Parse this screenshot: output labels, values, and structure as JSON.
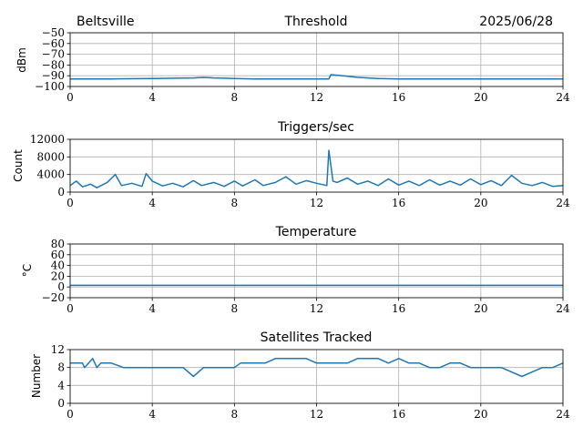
{
  "header": {
    "station": "Beltsville",
    "date": "2025/06/28"
  },
  "colors": {
    "series": "#1f77b4",
    "grid": "#b0b0b0"
  },
  "chart_data": [
    {
      "type": "line",
      "title": "Threshold",
      "ylabel": "dBm",
      "xlim": [
        0,
        24
      ],
      "ylim": [
        -100,
        -50
      ],
      "xticks": [
        "0",
        "4",
        "8",
        "12",
        "16",
        "20",
        "24"
      ],
      "yticks": [
        "−50",
        "−60",
        "−70",
        "−80",
        "−90",
        "−100"
      ],
      "ytick_values": [
        -50,
        -60,
        -70,
        -80,
        -90,
        -100
      ],
      "grid": true,
      "x": [
        0,
        2,
        4,
        6,
        6.5,
        7,
        8,
        9,
        10,
        12,
        12.6,
        12.7,
        13,
        13.5,
        14,
        15,
        16,
        18,
        20,
        22,
        24
      ],
      "y": [
        -93,
        -93,
        -92.5,
        -92,
        -91.5,
        -92,
        -92.5,
        -93,
        -93,
        -93,
        -93,
        -89,
        -89.5,
        -90.5,
        -91.5,
        -92.5,
        -93,
        -93,
        -93,
        -93,
        -93
      ]
    },
    {
      "type": "line",
      "title": "Triggers/sec",
      "ylabel": "Count",
      "xlim": [
        0,
        24
      ],
      "ylim": [
        0,
        12000
      ],
      "xticks": [
        "0",
        "4",
        "8",
        "12",
        "16",
        "20",
        "24"
      ],
      "yticks": [
        "12000",
        "8000",
        "4000",
        "0"
      ],
      "ytick_values": [
        12000,
        8000,
        4000,
        0
      ],
      "grid": true,
      "x": [
        0,
        0.3,
        0.6,
        1,
        1.3,
        1.8,
        2.2,
        2.5,
        3,
        3.5,
        3.7,
        4,
        4.5,
        5,
        5.5,
        6,
        6.4,
        7,
        7.5,
        8,
        8.4,
        9,
        9.4,
        10,
        10.5,
        11,
        11.5,
        12,
        12.5,
        12.6,
        12.8,
        13,
        13.5,
        14,
        14.5,
        15,
        15.5,
        16,
        16.5,
        17,
        17.5,
        18,
        18.5,
        19,
        19.5,
        20,
        20.5,
        21,
        21.5,
        22,
        22.5,
        23,
        23.5,
        24
      ],
      "y": [
        1500,
        2500,
        1200,
        1800,
        1000,
        2200,
        4000,
        1500,
        2000,
        1300,
        4200,
        2500,
        1400,
        2000,
        1200,
        2600,
        1500,
        2200,
        1300,
        2500,
        1400,
        2800,
        1500,
        2200,
        3500,
        1800,
        2600,
        2000,
        1500,
        9500,
        2500,
        2200,
        3200,
        1800,
        2500,
        1500,
        3000,
        1600,
        2500,
        1500,
        2800,
        1600,
        2500,
        1600,
        3000,
        1700,
        2600,
        1500,
        3800,
        2000,
        1500,
        2200,
        1300,
        1500
      ]
    },
    {
      "type": "line",
      "title": "Temperature",
      "ylabel": "°C",
      "xlim": [
        0,
        24
      ],
      "ylim": [
        -20,
        80
      ],
      "xticks": [
        "0",
        "4",
        "8",
        "12",
        "16",
        "20",
        "24"
      ],
      "yticks": [
        "80",
        "60",
        "40",
        "20",
        "0",
        "−20"
      ],
      "ytick_values": [
        80,
        60,
        40,
        20,
        0,
        -20
      ],
      "grid": true,
      "x": [
        0,
        24
      ],
      "y": [
        3,
        3
      ]
    },
    {
      "type": "line",
      "title": "Satellites Tracked",
      "ylabel": "Number",
      "xlim": [
        0,
        24
      ],
      "ylim": [
        0,
        12
      ],
      "xticks": [
        "0",
        "4",
        "8",
        "12",
        "16",
        "20",
        "24"
      ],
      "yticks": [
        "12",
        "8",
        "4",
        "0"
      ],
      "ytick_values": [
        12,
        8,
        4,
        0
      ],
      "grid": true,
      "x": [
        0,
        0.6,
        0.7,
        1.1,
        1.3,
        1.5,
        2,
        2.6,
        3,
        3.5,
        4,
        4.5,
        5,
        5.5,
        6,
        6.5,
        7,
        7.5,
        8,
        8.3,
        8.6,
        9,
        9.5,
        10,
        10.5,
        11,
        11.5,
        12,
        12.5,
        13,
        13.5,
        14,
        14.5,
        15,
        15.5,
        16,
        16.5,
        17,
        17.5,
        18,
        18.5,
        19,
        19.5,
        20,
        20.5,
        21,
        21.5,
        22,
        22.5,
        23,
        23.5,
        24
      ],
      "y": [
        9,
        9,
        8,
        10,
        8,
        9,
        9,
        8,
        8,
        8,
        8,
        8,
        8,
        8,
        6,
        8,
        8,
        8,
        8,
        9,
        9,
        9,
        9,
        10,
        10,
        10,
        10,
        9,
        9,
        9,
        9,
        10,
        10,
        10,
        9,
        10,
        9,
        9,
        8,
        8,
        9,
        9,
        8,
        8,
        8,
        8,
        7,
        6,
        7,
        8,
        8,
        9
      ]
    }
  ]
}
